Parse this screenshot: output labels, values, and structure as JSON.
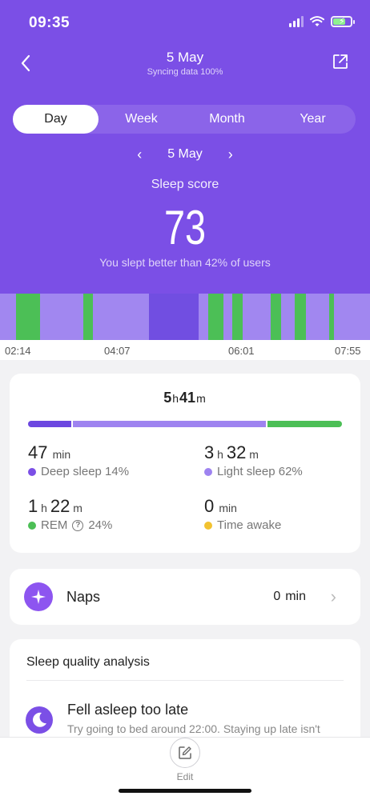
{
  "status_bar": {
    "time": "09:35"
  },
  "nav": {
    "title": "5 May",
    "subtitle": "Syncing data 100%"
  },
  "tabs": [
    {
      "label": "Day",
      "active": true
    },
    {
      "label": "Week",
      "active": false
    },
    {
      "label": "Month",
      "active": false
    },
    {
      "label": "Year",
      "active": false
    }
  ],
  "date_picker": {
    "date": "5 May"
  },
  "score": {
    "label": "Sleep score",
    "value": "73",
    "comparison": "You slept better than 42% of users"
  },
  "timeline": {
    "time_labels": [
      "02:14",
      "04:07",
      "06:01",
      "07:55"
    ],
    "colors": {
      "deep": "#6c47e0",
      "light": "#9e83f0",
      "rem": "#4cbf56"
    }
  },
  "summary": {
    "total_hours": "5",
    "total_minutes": "41",
    "hour_unit": "h",
    "minute_unit": "m",
    "proportions": {
      "deep": 14,
      "light": 62,
      "rem": 24
    },
    "deep": {
      "value": "47",
      "unit": "min",
      "label": "Deep sleep 14%",
      "color": "#7b4fe6"
    },
    "light": {
      "hours": "3",
      "minutes": "32",
      "label": "Light sleep 62%",
      "color": "#9e83f0"
    },
    "rem": {
      "hours": "1",
      "minutes": "22",
      "label_prefix": "REM",
      "label_suffix": "24%",
      "color": "#4cbf56"
    },
    "awake": {
      "value": "0",
      "unit": "min",
      "label": "Time awake",
      "color": "#f2c230"
    }
  },
  "naps": {
    "label": "Naps",
    "value": "0",
    "unit": "min"
  },
  "quality": {
    "title": "Sleep quality analysis",
    "item_title": "Fell asleep too late",
    "item_desc": "Try going to bed around 22:00. Staying up late isn't"
  },
  "bottom": {
    "edit_label": "Edit"
  }
}
